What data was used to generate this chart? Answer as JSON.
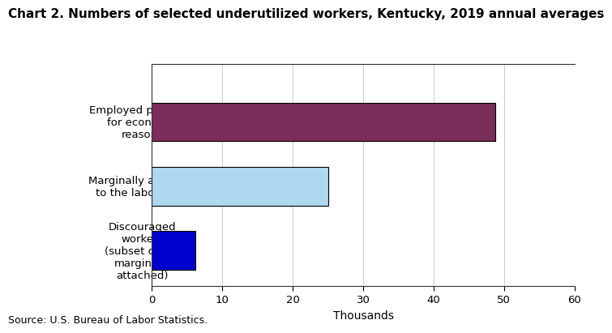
{
  "title": "Chart 2. Numbers of selected underutilized workers, Kentucky, 2019 annual averages",
  "categories": [
    "Employed part time\nfor economic\nreasons",
    "Marginally attached\nto the labor force",
    "Discouraged\nworkers\n(subset of the\nmarginally\nattached)"
  ],
  "values": [
    48.8,
    25.0,
    6.2
  ],
  "bar_colors": [
    "#7b2d5a",
    "#add8f0",
    "#0000cc"
  ],
  "xlabel": "Thousands",
  "xlim": [
    0,
    60
  ],
  "xticks": [
    0,
    10,
    20,
    30,
    40,
    50,
    60
  ],
  "source": "Source: U.S. Bureau of Labor Statistics.",
  "title_fontsize": 11,
  "tick_fontsize": 9.5,
  "label_fontsize": 10,
  "source_fontsize": 9,
  "bar_height": 0.6,
  "background_color": "#ffffff",
  "grid_color": "#cccccc",
  "edge_color": "#000000"
}
